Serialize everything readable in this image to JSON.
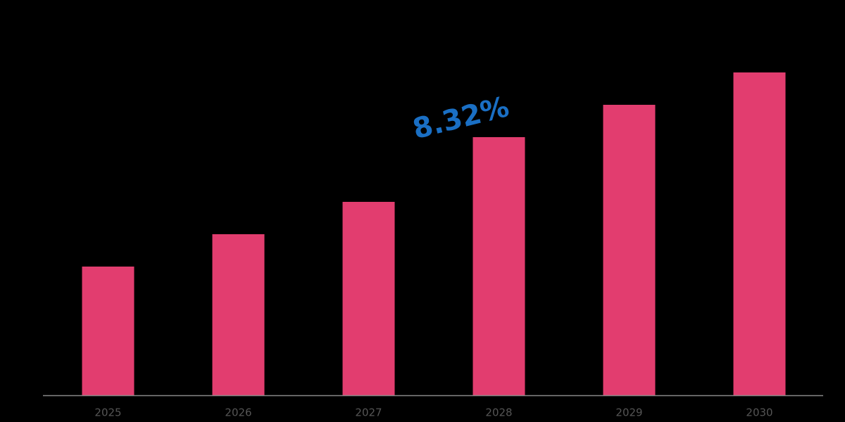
{
  "chart_data": {
    "type": "bar",
    "categories": [
      "2025",
      "2026",
      "2027",
      "2028",
      "2029",
      "2030"
    ],
    "values": [
      183,
      229,
      275,
      367,
      413,
      459
    ],
    "color": "#e23d6f",
    "annotation": "8.32%",
    "annotation_color": "#1a6fc4"
  }
}
